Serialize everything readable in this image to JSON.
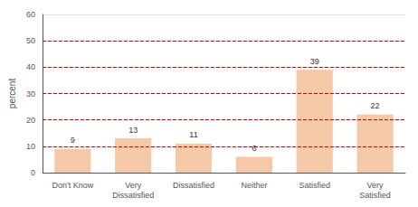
{
  "chart_data": {
    "type": "bar",
    "categories": [
      "Don't Know",
      "Very\nDissatisfied",
      "Dissatisfied",
      "Neither",
      "Satisfied",
      "Very\nSatisfied"
    ],
    "values": [
      9,
      13,
      11,
      6,
      39,
      22
    ],
    "color": "#F5C8A8",
    "ylabel": "percent",
    "ylim": [
      0,
      60
    ],
    "yticks": [
      0,
      10,
      20,
      30,
      40,
      50,
      60
    ],
    "grid": true,
    "data_labels": true,
    "reference_lines": {
      "values": [
        10,
        20,
        30,
        40,
        50
      ],
      "color": "#CC0000",
      "line_style": "dashed"
    }
  }
}
